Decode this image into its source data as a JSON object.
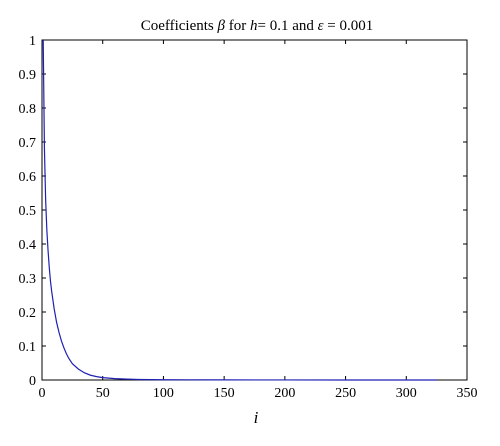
{
  "chart_data": {
    "type": "line",
    "title_parts": [
      {
        "t": "Coefficients ",
        "i": false
      },
      {
        "t": "β",
        "i": true
      },
      {
        "t": " for ",
        "i": false
      },
      {
        "t": "h",
        "i": true
      },
      {
        "t": "= 0.1 and ",
        "i": false
      },
      {
        "t": "ε",
        "i": true
      },
      {
        "t": " = 0.001",
        "i": false
      }
    ],
    "xlabel": "i",
    "ylabel": "",
    "xlim": [
      0,
      350
    ],
    "ylim": [
      0,
      1
    ],
    "xticks": [
      0,
      50,
      100,
      150,
      200,
      250,
      300,
      350
    ],
    "yticks": [
      0,
      0.1,
      0.2,
      0.3,
      0.4,
      0.5,
      0.6,
      0.7,
      0.8,
      0.9,
      1
    ],
    "xtick_labels": [
      "0",
      "50",
      "100",
      "150",
      "200",
      "250",
      "300",
      "350"
    ],
    "ytick_labels": [
      "0",
      "0.1",
      "0.2",
      "0.3",
      "0.4",
      "0.5",
      "0.6",
      "0.7",
      "0.8",
      "0.9",
      "1"
    ],
    "grid": false,
    "line_color": "#1f1fb4",
    "series": [
      {
        "x": [
          1,
          2,
          3,
          4,
          5,
          6,
          7,
          8,
          10,
          12,
          14,
          16,
          18,
          20,
          22,
          25,
          30,
          35,
          40,
          45,
          50,
          60,
          70,
          80,
          90,
          100,
          120,
          150,
          200,
          250,
          300,
          325
        ],
        "values": [
          1.0,
          0.68,
          0.53,
          0.44,
          0.38,
          0.33,
          0.29,
          0.26,
          0.21,
          0.17,
          0.14,
          0.115,
          0.095,
          0.078,
          0.064,
          0.048,
          0.032,
          0.021,
          0.014,
          0.01,
          0.007,
          0.004,
          0.0025,
          0.0015,
          0.001,
          0.0008,
          0.0005,
          0.0003,
          0.0002,
          0.0001,
          0.0001,
          0.0001
        ]
      }
    ]
  }
}
